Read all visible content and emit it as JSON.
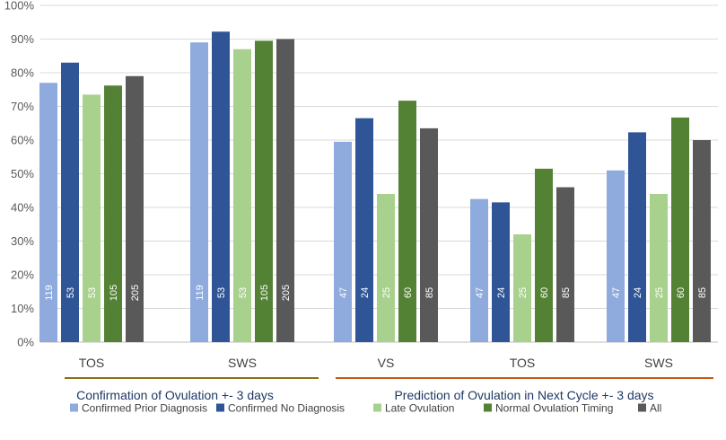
{
  "chart_data": {
    "type": "bar",
    "title": "",
    "xlabel": "",
    "ylabel": "",
    "ylim": [
      0,
      100
    ],
    "yticks": [
      "0%",
      "10%",
      "20%",
      "30%",
      "40%",
      "50%",
      "60%",
      "70%",
      "80%",
      "90%",
      "100%"
    ],
    "grid": true,
    "legend_position": "bottom",
    "categories": [
      "TOS",
      "SWS",
      "VS",
      "TOS",
      "SWS"
    ],
    "groups": [
      {
        "label": "Confirmation of Ovulation +- 3 days",
        "categories": [
          0,
          1
        ],
        "color": "#8d6e12"
      },
      {
        "label": "Prediction of Ovulation in Next Cycle +- 3 days",
        "categories": [
          2,
          3,
          4
        ],
        "color": "#c55a11"
      }
    ],
    "series": [
      {
        "name": "Confirmed Prior Diagnosis",
        "color": "#8faadc",
        "values": [
          77,
          89,
          59.5,
          42.5,
          51
        ],
        "labels": [
          "119",
          "119",
          "47",
          "47",
          "47"
        ]
      },
      {
        "name": "Confirmed No Diagnosis",
        "color": "#2f5597",
        "values": [
          83,
          92.2,
          66.5,
          41.5,
          62.3
        ],
        "labels": [
          "53",
          "53",
          "24",
          "24",
          "24"
        ]
      },
      {
        "name": "Late Ovulation",
        "color": "#a9d18e",
        "values": [
          73.5,
          87,
          44,
          32,
          44
        ],
        "labels": [
          "53",
          "53",
          "25",
          "25",
          "25"
        ]
      },
      {
        "name": "Normal Ovulation Timing",
        "color": "#548235",
        "values": [
          76.2,
          89.5,
          71.7,
          51.5,
          66.7
        ],
        "labels": [
          "105",
          "105",
          "60",
          "60",
          "60"
        ]
      },
      {
        "name": "All",
        "color": "#595959",
        "values": [
          79,
          90,
          63.5,
          46,
          60
        ],
        "labels": [
          "205",
          "205",
          "85",
          "85",
          "85"
        ]
      }
    ]
  }
}
